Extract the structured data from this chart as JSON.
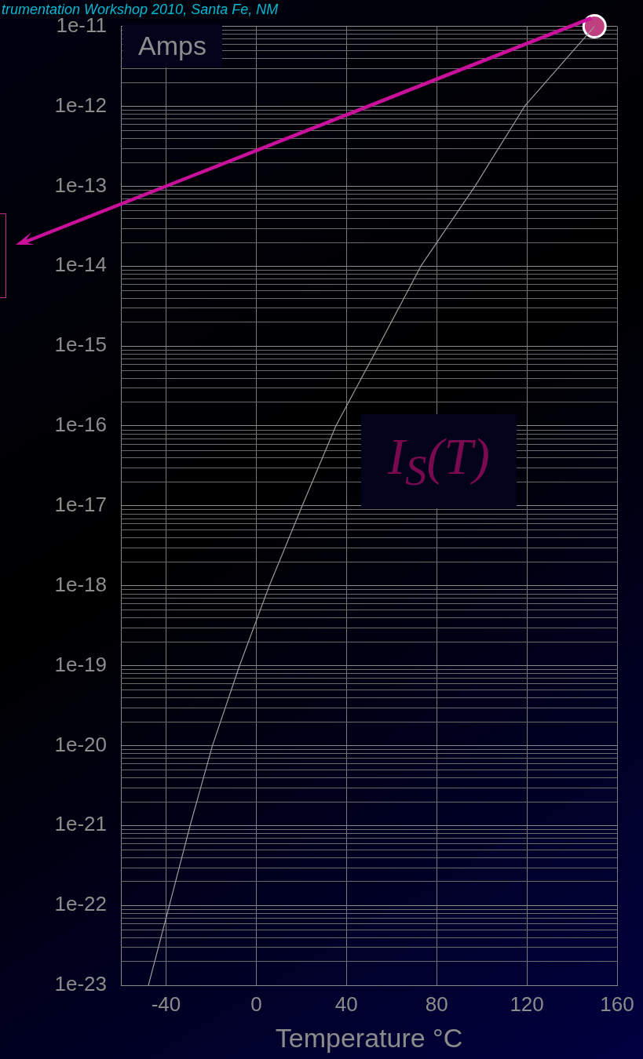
{
  "chart_data": {
    "type": "line",
    "xlabel": "Temperature °C",
    "ylabel": "Amps",
    "annotations": [
      "trumentation Workshop 2010, Santa Fe, NM",
      "I$_{S}$(T)"
    ],
    "xlim": [
      -60,
      160
    ],
    "xticks": [
      -40,
      0,
      40,
      80,
      120,
      160
    ],
    "ylim": [
      1e-23,
      1e-11
    ],
    "yticks": [
      1e-23,
      1e-22,
      1e-21,
      1e-20,
      1e-19,
      1e-18,
      1e-17,
      1e-16,
      1e-15,
      1e-14,
      1e-13,
      1e-12,
      1e-11
    ],
    "log": "y",
    "grid": true,
    "legend": false,
    "series": [
      {
        "color": "#9a9a9a",
        "marker": "none",
        "line_style": "solid",
        "x": [
          -47.8,
          -38.5,
          -29.3,
          -19.4,
          -7.4,
          5.8,
          20.4,
          35.3,
          54.3,
          73,
          97,
          119,
          150
        ],
        "values": [
          1e-23,
          1e-22,
          1e-21,
          1e-20,
          1e-19,
          1e-18,
          1e-17,
          1e-16,
          1e-15,
          1e-14,
          1e-13,
          1e-12,
          1e-11
        ]
      },
      {
        "type": "scatter",
        "color": "#c0407f",
        "marker": "circle",
        "x": [
          150
        ],
        "values": [
          1e-11
        ]
      }
    ]
  }
}
